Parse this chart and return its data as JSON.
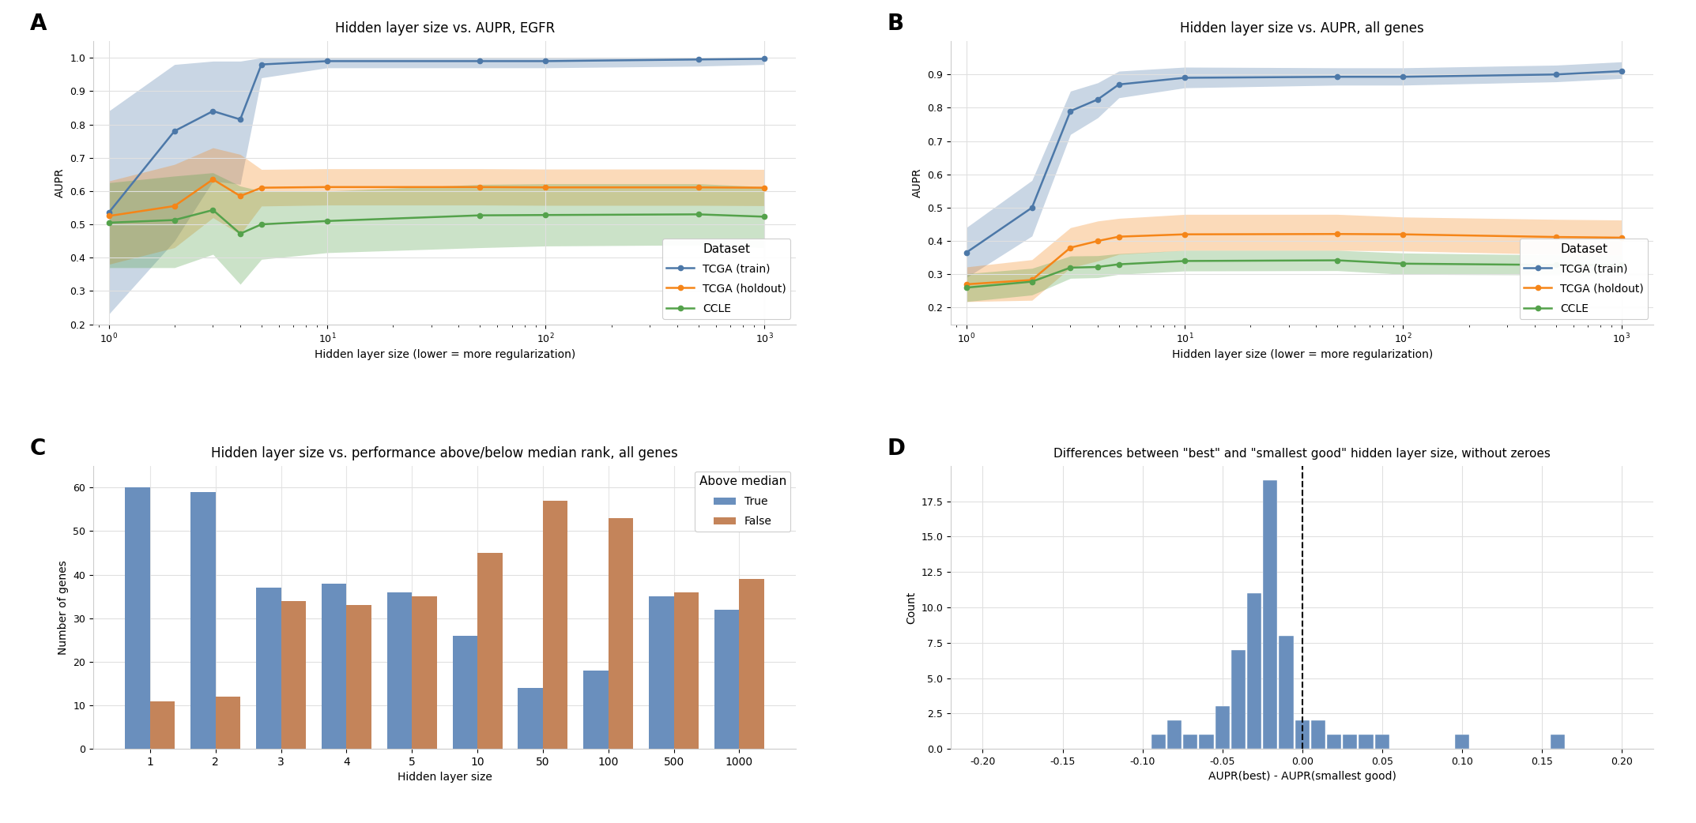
{
  "panel_A": {
    "title": "Hidden layer size vs. AUPR, EGFR",
    "xlabel": "Hidden layer size (lower = more regularization)",
    "ylabel": "AUPR",
    "ylim": [
      0.2,
      1.05
    ],
    "yticks": [
      0.2,
      0.3,
      0.4,
      0.5,
      0.6,
      0.7,
      0.8,
      0.9,
      1.0
    ],
    "x": [
      1,
      2,
      3,
      4,
      5,
      10,
      50,
      100,
      500,
      1000
    ],
    "tcga_train_mean": [
      0.535,
      0.78,
      0.84,
      0.815,
      0.98,
      0.99,
      0.99,
      0.99,
      0.995,
      0.997
    ],
    "tcga_train_lo": [
      0.23,
      0.45,
      0.63,
      0.62,
      0.94,
      0.97,
      0.97,
      0.97,
      0.975,
      0.98
    ],
    "tcga_train_hi": [
      0.84,
      0.98,
      0.99,
      0.99,
      1.0,
      1.0,
      1.0,
      1.0,
      1.0,
      1.0
    ],
    "tcga_holdout_mean": [
      0.525,
      0.555,
      0.635,
      0.585,
      0.61,
      0.612,
      0.612,
      0.611,
      0.611,
      0.61
    ],
    "tcga_holdout_lo": [
      0.38,
      0.43,
      0.52,
      0.47,
      0.555,
      0.558,
      0.558,
      0.557,
      0.557,
      0.556
    ],
    "tcga_holdout_hi": [
      0.63,
      0.68,
      0.73,
      0.71,
      0.665,
      0.667,
      0.667,
      0.666,
      0.666,
      0.665
    ],
    "ccle_mean": [
      0.505,
      0.513,
      0.543,
      0.472,
      0.5,
      0.51,
      0.527,
      0.528,
      0.53,
      0.523
    ],
    "ccle_lo": [
      0.37,
      0.37,
      0.41,
      0.32,
      0.395,
      0.415,
      0.43,
      0.435,
      0.438,
      0.43
    ],
    "ccle_hi": [
      0.625,
      0.645,
      0.655,
      0.615,
      0.6,
      0.6,
      0.62,
      0.622,
      0.622,
      0.613
    ]
  },
  "panel_B": {
    "title": "Hidden layer size vs. AUPR, all genes",
    "xlabel": "Hidden layer size (lower = more regularization)",
    "ylabel": "AUPR",
    "ylim": [
      0.15,
      1.0
    ],
    "yticks": [
      0.2,
      0.3,
      0.4,
      0.5,
      0.6,
      0.7,
      0.8,
      0.9
    ],
    "x": [
      1,
      2,
      3,
      4,
      5,
      10,
      50,
      100,
      500,
      1000
    ],
    "tcga_train_mean": [
      0.365,
      0.5,
      0.79,
      0.825,
      0.87,
      0.89,
      0.893,
      0.893,
      0.9,
      0.91
    ],
    "tcga_train_lo": [
      0.29,
      0.415,
      0.72,
      0.77,
      0.83,
      0.86,
      0.868,
      0.868,
      0.878,
      0.888
    ],
    "tcga_train_hi": [
      0.44,
      0.582,
      0.85,
      0.875,
      0.91,
      0.922,
      0.92,
      0.92,
      0.928,
      0.938
    ],
    "tcga_holdout_mean": [
      0.27,
      0.283,
      0.38,
      0.4,
      0.413,
      0.42,
      0.421,
      0.42,
      0.412,
      0.41
    ],
    "tcga_holdout_lo": [
      0.218,
      0.222,
      0.32,
      0.34,
      0.36,
      0.372,
      0.372,
      0.37,
      0.36,
      0.358
    ],
    "tcga_holdout_hi": [
      0.322,
      0.344,
      0.44,
      0.46,
      0.468,
      0.48,
      0.48,
      0.472,
      0.465,
      0.463
    ],
    "ccle_mean": [
      0.26,
      0.278,
      0.32,
      0.322,
      0.33,
      0.34,
      0.342,
      0.332,
      0.328,
      0.328
    ],
    "ccle_lo": [
      0.218,
      0.238,
      0.288,
      0.29,
      0.3,
      0.31,
      0.311,
      0.3,
      0.298,
      0.297
    ],
    "ccle_hi": [
      0.302,
      0.318,
      0.355,
      0.356,
      0.362,
      0.372,
      0.372,
      0.364,
      0.358,
      0.358
    ]
  },
  "panel_C": {
    "title": "Hidden layer size vs. performance above/below median rank, all genes",
    "xlabel": "Hidden layer size",
    "ylabel": "Number of genes",
    "categories": [
      "1",
      "2",
      "3",
      "4",
      "5",
      "10",
      "50",
      "100",
      "500",
      "1000"
    ],
    "true_vals": [
      60,
      59,
      37,
      38,
      36,
      26,
      14,
      18,
      35,
      32
    ],
    "false_vals": [
      11,
      12,
      34,
      33,
      35,
      45,
      57,
      53,
      36,
      39
    ],
    "ylim": [
      0,
      65
    ],
    "yticks": [
      0,
      10,
      20,
      30,
      40,
      50,
      60
    ],
    "bar_true_color": "#6a8fbd",
    "bar_false_color": "#c4845a",
    "legend_title": "Above median"
  },
  "panel_D": {
    "title": "Differences between \"best\" and \"smallest good\" hidden layer size, without zeroes",
    "xlabel": "AUPR(best) - AUPR(smallest good)",
    "ylabel": "Count",
    "xlim": [
      -0.22,
      0.22
    ],
    "ylim": [
      0,
      20
    ],
    "yticks": [
      0.0,
      2.5,
      5.0,
      7.5,
      10.0,
      12.5,
      15.0,
      17.5
    ],
    "xticks": [
      -0.2,
      -0.15,
      -0.1,
      -0.05,
      0.0,
      0.05,
      0.1,
      0.15,
      0.2
    ],
    "bin_centers": [
      -0.09,
      -0.08,
      -0.07,
      -0.06,
      -0.05,
      -0.04,
      -0.03,
      -0.02,
      -0.01,
      0.0,
      0.01,
      0.02,
      0.03,
      0.04,
      0.05,
      0.06,
      0.07,
      0.08,
      0.09,
      0.1,
      0.11,
      0.16,
      0.17
    ],
    "bin_counts": [
      1,
      2,
      1,
      1,
      3,
      7,
      11,
      19,
      8,
      2,
      2,
      1,
      1,
      1,
      1,
      0,
      0,
      0,
      0,
      1,
      0,
      1,
      0
    ],
    "bar_color": "#6a8fbd",
    "vline_x": 0.0,
    "vline_style": "--",
    "vline_color": "black"
  },
  "colors": {
    "tcga_train": "#4c78a8",
    "tcga_holdout": "#f58518",
    "ccle": "#54a24b"
  },
  "legend": {
    "title": "Dataset",
    "labels": [
      "TCGA (train)",
      "TCGA (holdout)",
      "CCLE"
    ]
  }
}
